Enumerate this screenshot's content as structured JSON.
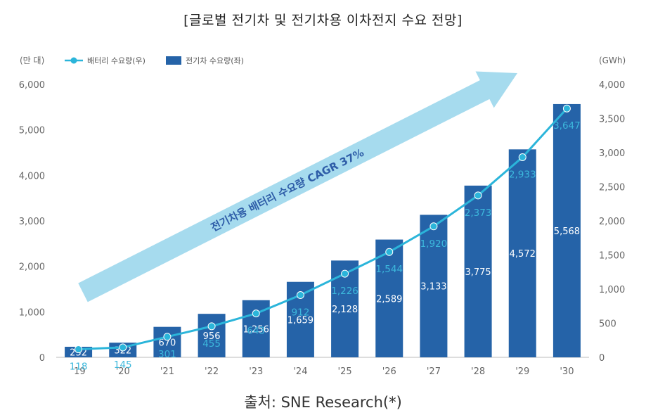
{
  "title": "[글로벌 전기차 및 전기차용 이차전지 수요 전망]",
  "source": "출처: SNE Research(*)",
  "colors": {
    "bar": "#2563a8",
    "line": "#2bb5da",
    "arrow": "#a6dbee",
    "arrow_text": "#2e5da8"
  },
  "chart_data": {
    "type": "bar",
    "categories": [
      "'19",
      "'20",
      "'21",
      "'22",
      "'23",
      "'24",
      "'25",
      "'26",
      "'27",
      "'28",
      "'29",
      "'30"
    ],
    "left_unit": "(만 대)",
    "right_unit": "(GWh)",
    "left_ylim": [
      0,
      6000
    ],
    "left_ticks": [
      "0",
      "1,000",
      "2,000",
      "3,000",
      "4,000",
      "5,000",
      "6,000"
    ],
    "right_ylim": [
      0,
      4000
    ],
    "right_ticks": [
      "0",
      "500",
      "1,000",
      "1,500",
      "2,000",
      "2,500",
      "3,000",
      "3,500",
      "4,000"
    ],
    "series": [
      {
        "name": "배터리 수요량(우)",
        "type": "line",
        "axis": "right",
        "values": [
          118,
          145,
          301,
          455,
          643,
          912,
          1226,
          1544,
          1920,
          2373,
          2933,
          3647
        ],
        "labels": [
          "118",
          "145",
          "301",
          "455",
          "643",
          "912",
          "1,226",
          "1,544",
          "1,920",
          "2,373",
          "2,933",
          "3,647"
        ]
      },
      {
        "name": "전기차 수요량(좌)",
        "type": "bar",
        "axis": "left",
        "values": [
          232,
          322,
          670,
          956,
          1256,
          1659,
          2128,
          2589,
          3133,
          3775,
          4572,
          5568
        ],
        "labels": [
          "232",
          "322",
          "670",
          "956",
          "1,256",
          "1,659",
          "2,128",
          "2,589",
          "3,133",
          "3,775",
          "4,572",
          "5,568"
        ]
      }
    ],
    "annotation": "전기차용 배터리 수요량 CAGR 37%",
    "grid": false,
    "legend": "top-left"
  }
}
